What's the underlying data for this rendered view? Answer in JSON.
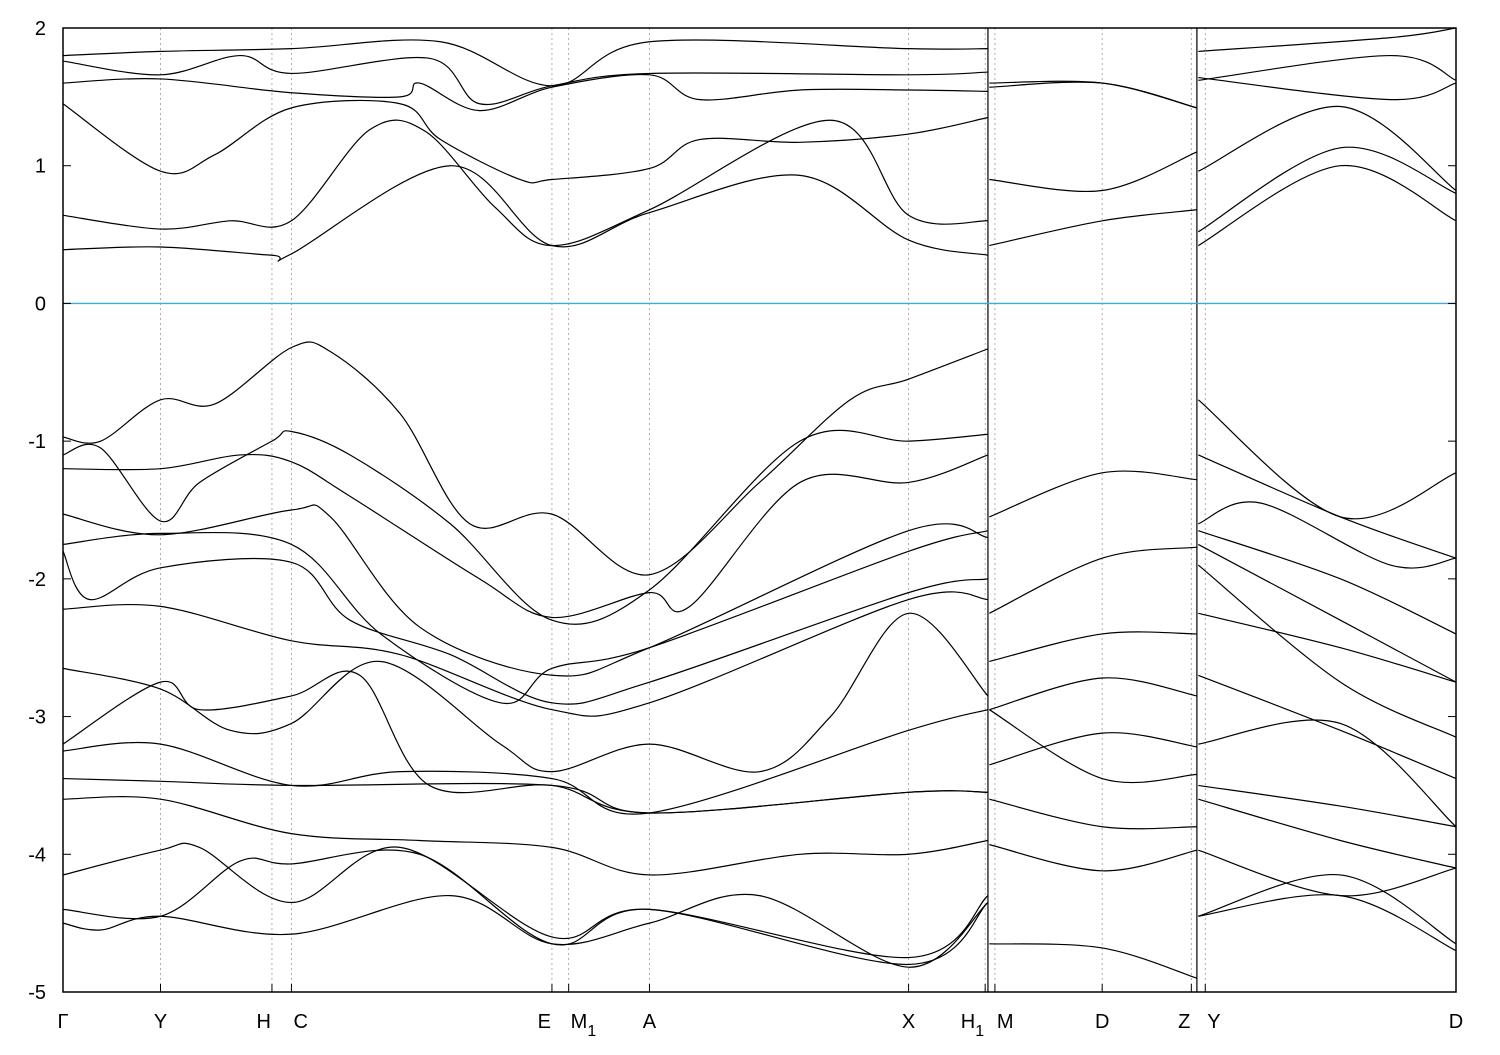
{
  "chart_data": {
    "type": "line",
    "title": "",
    "xlabel": "",
    "ylabel": "",
    "ylim": [
      -5,
      2
    ],
    "xlim": [
      0,
      100
    ],
    "yticks": [
      2,
      1,
      0,
      -1,
      -2,
      -3,
      -4,
      -5
    ],
    "grid": "vertical dotted lines at high-symmetry points",
    "legend": "none",
    "fermi_level": 0,
    "colors": {
      "bands": "#000000",
      "fermi": "#3fa9dc",
      "grid": "#999999"
    },
    "kpoints": [
      {
        "label": "Γ",
        "k": 0
      },
      {
        "label": "Y",
        "k": 7.0
      },
      {
        "label": "H",
        "k": 15.0
      },
      {
        "label": "C",
        "k": 16.4
      },
      {
        "label": "E",
        "k": 35.1
      },
      {
        "label": "M",
        "sub": "1",
        "k": 36.3
      },
      {
        "label": "A",
        "k": 42.1
      },
      {
        "label": "X",
        "k": 60.7
      },
      {
        "label": "H",
        "sub": "1",
        "k": 66.2
      },
      {
        "label": "M",
        "k": 66.9
      },
      {
        "label": "D",
        "k": 74.6
      },
      {
        "label": "Z",
        "k": 81.0
      },
      {
        "label": "Y",
        "k": 82.0
      },
      {
        "label": "D",
        "k": 100
      }
    ],
    "panel_breaks": [
      66.4,
      81.4
    ],
    "bands": [
      [
        [
          0,
          0.39
        ],
        [
          7.0,
          0.41
        ],
        [
          15.0,
          0.35
        ],
        [
          16.4,
          0.36
        ],
        [
          27.8,
          1.0
        ],
        [
          35.1,
          0.42
        ],
        [
          42.1,
          0.66
        ],
        [
          52.9,
          0.93
        ],
        [
          60.7,
          0.46
        ],
        [
          66.4,
          0.35
        ]
      ],
      [
        [
          0,
          0.64
        ],
        [
          7.0,
          0.54
        ],
        [
          12.0,
          0.6
        ],
        [
          16.4,
          0.6
        ],
        [
          22.0,
          1.26
        ],
        [
          26.0,
          1.25
        ],
        [
          31.0,
          0.7
        ],
        [
          35.1,
          0.42
        ],
        [
          42.1,
          0.68
        ],
        [
          55.1,
          1.33
        ],
        [
          60.7,
          0.64
        ],
        [
          66.4,
          0.6
        ]
      ],
      [
        [
          0,
          1.45
        ],
        [
          7.0,
          0.96
        ],
        [
          10.9,
          1.08
        ],
        [
          16.4,
          1.42
        ],
        [
          24.2,
          1.45
        ],
        [
          27.1,
          1.19
        ],
        [
          32.8,
          0.9
        ],
        [
          35.1,
          0.9
        ],
        [
          42.1,
          0.98
        ],
        [
          45.7,
          1.19
        ],
        [
          52.9,
          1.17
        ],
        [
          60.7,
          1.23
        ],
        [
          66.4,
          1.35
        ]
      ],
      [
        [
          0,
          1.6
        ],
        [
          7.0,
          1.63
        ],
        [
          16.4,
          1.53
        ],
        [
          24.2,
          1.5
        ],
        [
          25.6,
          1.6
        ],
        [
          29.9,
          1.4
        ],
        [
          35.1,
          1.57
        ],
        [
          42.1,
          1.66
        ],
        [
          45.7,
          1.48
        ],
        [
          52.9,
          1.55
        ],
        [
          60.7,
          1.55
        ],
        [
          66.4,
          1.54
        ]
      ],
      [
        [
          0,
          1.76
        ],
        [
          7.0,
          1.66
        ],
        [
          12.7,
          1.8
        ],
        [
          16.4,
          1.67
        ],
        [
          26.3,
          1.78
        ],
        [
          29.9,
          1.45
        ],
        [
          35.1,
          1.58
        ],
        [
          42.1,
          1.67
        ],
        [
          60.7,
          1.66
        ],
        [
          66.4,
          1.68
        ]
      ],
      [
        [
          0,
          1.8
        ],
        [
          7.0,
          1.83
        ],
        [
          16.4,
          1.85
        ],
        [
          27.1,
          1.9
        ],
        [
          35.1,
          1.58
        ],
        [
          42.1,
          1.9
        ],
        [
          60.7,
          1.85
        ],
        [
          66.4,
          1.85
        ]
      ],
      [
        [
          0,
          -0.97
        ],
        [
          2.7,
          -1.0
        ],
        [
          7.0,
          -0.7
        ],
        [
          10.9,
          -0.73
        ],
        [
          16.4,
          -0.32
        ],
        [
          19.2,
          -0.35
        ],
        [
          24.2,
          -0.8
        ],
        [
          29.2,
          -1.6
        ],
        [
          35.1,
          -1.53
        ],
        [
          42.1,
          -1.97
        ],
        [
          50.0,
          -1.3
        ],
        [
          56.5,
          -0.7
        ],
        [
          60.7,
          -0.55
        ],
        [
          66.4,
          -0.33
        ]
      ],
      [
        [
          0,
          -1.1
        ],
        [
          2.7,
          -1.05
        ],
        [
          7.0,
          -1.58
        ],
        [
          9.8,
          -1.3
        ],
        [
          15.0,
          -1.0
        ],
        [
          16.4,
          -0.93
        ],
        [
          20.6,
          -1.1
        ],
        [
          27.8,
          -1.6
        ],
        [
          35.1,
          -2.3
        ],
        [
          42.1,
          -2.08
        ],
        [
          52.9,
          -1.0
        ],
        [
          60.7,
          -1.0
        ],
        [
          66.4,
          -0.95
        ]
      ],
      [
        [
          0,
          -1.2
        ],
        [
          7.0,
          -1.2
        ],
        [
          12.7,
          -1.1
        ],
        [
          16.4,
          -1.15
        ],
        [
          20.6,
          -1.4
        ],
        [
          29.9,
          -2.0
        ],
        [
          35.1,
          -2.28
        ],
        [
          42.1,
          -2.1
        ],
        [
          45.0,
          -2.2
        ],
        [
          52.9,
          -1.3
        ],
        [
          60.7,
          -1.3
        ],
        [
          66.4,
          -1.1
        ]
      ],
      [
        [
          0,
          -1.53
        ],
        [
          7.0,
          -1.68
        ],
        [
          16.4,
          -1.5
        ],
        [
          19.2,
          -1.55
        ],
        [
          25.6,
          -2.35
        ],
        [
          35.1,
          -2.7
        ],
        [
          42.1,
          -2.5
        ],
        [
          60.7,
          -1.65
        ],
        [
          66.4,
          -1.7
        ]
      ],
      [
        [
          0,
          -1.75
        ],
        [
          7.0,
          -1.67
        ],
        [
          16.4,
          -1.75
        ],
        [
          22.8,
          -2.4
        ],
        [
          31.4,
          -2.9
        ],
        [
          35.1,
          -2.65
        ],
        [
          42.1,
          -2.5
        ],
        [
          60.7,
          -1.8
        ],
        [
          66.4,
          -1.65
        ]
      ],
      [
        [
          0,
          -1.8
        ],
        [
          1.9,
          -2.15
        ],
        [
          7.0,
          -1.92
        ],
        [
          16.4,
          -1.88
        ],
        [
          20.6,
          -2.3
        ],
        [
          27.8,
          -2.55
        ],
        [
          35.1,
          -2.9
        ],
        [
          42.1,
          -2.75
        ],
        [
          60.7,
          -2.1
        ],
        [
          66.4,
          -2.0
        ]
      ],
      [
        [
          0,
          -2.22
        ],
        [
          7.0,
          -2.2
        ],
        [
          16.4,
          -2.45
        ],
        [
          24.2,
          -2.55
        ],
        [
          35.1,
          -2.95
        ],
        [
          42.1,
          -2.9
        ],
        [
          60.7,
          -2.15
        ],
        [
          66.4,
          -2.15
        ]
      ],
      [
        [
          0,
          -2.65
        ],
        [
          7.0,
          -2.8
        ],
        [
          12.0,
          -3.1
        ],
        [
          16.4,
          -3.05
        ],
        [
          22.8,
          -2.6
        ],
        [
          31.4,
          -3.2
        ],
        [
          35.1,
          -3.4
        ],
        [
          42.1,
          -3.2
        ],
        [
          50.0,
          -3.4
        ],
        [
          55.1,
          -3.0
        ],
        [
          60.7,
          -2.25
        ],
        [
          66.4,
          -2.85
        ]
      ],
      [
        [
          0,
          -3.2
        ],
        [
          7.0,
          -2.75
        ],
        [
          9.8,
          -2.95
        ],
        [
          16.4,
          -2.85
        ],
        [
          21.3,
          -2.7
        ],
        [
          26.3,
          -3.5
        ],
        [
          35.1,
          -3.5
        ],
        [
          42.1,
          -3.7
        ],
        [
          60.7,
          -3.55
        ],
        [
          66.4,
          -3.55
        ]
      ],
      [
        [
          0,
          -3.25
        ],
        [
          7.0,
          -3.2
        ],
        [
          16.4,
          -3.5
        ],
        [
          24.2,
          -3.4
        ],
        [
          35.1,
          -3.45
        ],
        [
          42.1,
          -3.7
        ],
        [
          60.7,
          -3.1
        ],
        [
          66.4,
          -2.95
        ]
      ],
      [
        [
          0,
          -3.45
        ],
        [
          7.0,
          -3.47
        ],
        [
          16.4,
          -3.5
        ],
        [
          35.1,
          -3.5
        ],
        [
          42.1,
          -3.7
        ],
        [
          60.7,
          -3.55
        ],
        [
          66.4,
          -3.55
        ]
      ],
      [
        [
          0,
          -3.6
        ],
        [
          7.0,
          -3.6
        ],
        [
          16.4,
          -3.85
        ],
        [
          25.6,
          -3.9
        ],
        [
          35.1,
          -3.95
        ],
        [
          42.1,
          -4.15
        ],
        [
          52.9,
          -4.0
        ],
        [
          60.7,
          -4.0
        ],
        [
          66.4,
          -3.9
        ]
      ],
      [
        [
          0,
          -4.15
        ],
        [
          7.0,
          -3.97
        ],
        [
          9.8,
          -3.95
        ],
        [
          16.4,
          -4.35
        ],
        [
          24.2,
          -3.95
        ],
        [
          35.1,
          -4.6
        ],
        [
          42.1,
          -4.4
        ],
        [
          60.7,
          -4.75
        ],
        [
          66.4,
          -4.3
        ]
      ],
      [
        [
          0,
          -4.4
        ],
        [
          7.0,
          -4.45
        ],
        [
          12.7,
          -4.05
        ],
        [
          16.4,
          -4.07
        ],
        [
          25.6,
          -4.0
        ],
        [
          35.1,
          -4.65
        ],
        [
          42.1,
          -4.4
        ],
        [
          60.7,
          -4.8
        ],
        [
          66.4,
          -4.35
        ]
      ],
      [
        [
          0,
          -4.5
        ],
        [
          2.7,
          -4.55
        ],
        [
          7.0,
          -4.45
        ],
        [
          16.4,
          -4.58
        ],
        [
          27.8,
          -4.3
        ],
        [
          35.1,
          -4.65
        ],
        [
          42.1,
          -4.5
        ],
        [
          50.0,
          -4.3
        ],
        [
          60.7,
          -4.82
        ],
        [
          66.4,
          -4.35
        ]
      ],
      [
        [
          66.5,
          0.42
        ],
        [
          74.6,
          0.6
        ],
        [
          81.4,
          0.68
        ]
      ],
      [
        [
          66.5,
          0.9
        ],
        [
          74.6,
          0.82
        ],
        [
          81.4,
          1.1
        ]
      ],
      [
        [
          66.5,
          1.6
        ],
        [
          74.6,
          1.6
        ],
        [
          81.4,
          1.42
        ]
      ],
      [
        [
          66.5,
          1.57
        ],
        [
          74.6,
          1.6
        ],
        [
          81.4,
          1.42
        ]
      ],
      [
        [
          66.5,
          -1.55
        ],
        [
          74.6,
          -1.23
        ],
        [
          81.4,
          -1.28
        ]
      ],
      [
        [
          66.5,
          -2.25
        ],
        [
          74.6,
          -1.85
        ],
        [
          81.4,
          -1.77
        ]
      ],
      [
        [
          66.5,
          -2.6
        ],
        [
          74.6,
          -2.4
        ],
        [
          81.4,
          -2.4
        ]
      ],
      [
        [
          66.5,
          -2.95
        ],
        [
          74.6,
          -2.72
        ],
        [
          81.4,
          -2.85
        ]
      ],
      [
        [
          66.5,
          -3.35
        ],
        [
          74.6,
          -3.12
        ],
        [
          81.4,
          -3.22
        ]
      ],
      [
        [
          66.5,
          -2.95
        ],
        [
          74.6,
          -3.45
        ],
        [
          81.4,
          -3.42
        ]
      ],
      [
        [
          66.5,
          -3.6
        ],
        [
          74.6,
          -3.8
        ],
        [
          81.4,
          -3.8
        ]
      ],
      [
        [
          66.5,
          -3.93
        ],
        [
          74.6,
          -4.12
        ],
        [
          81.4,
          -3.97
        ]
      ],
      [
        [
          66.5,
          -4.65
        ],
        [
          74.6,
          -4.68
        ],
        [
          81.4,
          -4.9
        ]
      ],
      [
        [
          81.5,
          0.42
        ],
        [
          91.7,
          1.0
        ],
        [
          100,
          0.6
        ]
      ],
      [
        [
          81.5,
          0.52
        ],
        [
          91.7,
          1.13
        ],
        [
          100,
          0.8
        ]
      ],
      [
        [
          81.5,
          0.96
        ],
        [
          91.7,
          1.43
        ],
        [
          100,
          0.82
        ]
      ],
      [
        [
          81.5,
          1.64
        ],
        [
          95.3,
          1.48
        ],
        [
          100,
          1.6
        ]
      ],
      [
        [
          81.5,
          1.62
        ],
        [
          95.3,
          1.8
        ],
        [
          100,
          1.62
        ]
      ],
      [
        [
          81.5,
          1.83
        ],
        [
          95.3,
          1.93
        ],
        [
          100,
          2.0
        ]
      ],
      [
        [
          81.5,
          -0.7
        ],
        [
          91.7,
          -1.55
        ],
        [
          100,
          -1.23
        ]
      ],
      [
        [
          81.5,
          -1.1
        ],
        [
          91.7,
          -1.55
        ],
        [
          100,
          -1.85
        ]
      ],
      [
        [
          81.5,
          -1.6
        ],
        [
          86.0,
          -1.45
        ],
        [
          95.3,
          -1.9
        ],
        [
          100,
          -1.85
        ]
      ],
      [
        [
          81.5,
          -1.65
        ],
        [
          91.7,
          -2.0
        ],
        [
          100,
          -2.4
        ]
      ],
      [
        [
          81.5,
          -1.75
        ],
        [
          91.7,
          -2.3
        ],
        [
          100,
          -2.75
        ]
      ],
      [
        [
          81.5,
          -1.9
        ],
        [
          91.7,
          -2.75
        ],
        [
          100,
          -3.15
        ]
      ],
      [
        [
          81.5,
          -2.25
        ],
        [
          91.7,
          -2.5
        ],
        [
          100,
          -2.75
        ]
      ],
      [
        [
          81.5,
          -2.7
        ],
        [
          91.7,
          -3.1
        ],
        [
          100,
          -3.45
        ]
      ],
      [
        [
          81.5,
          -3.2
        ],
        [
          91.7,
          -3.05
        ],
        [
          100,
          -3.8
        ]
      ],
      [
        [
          81.5,
          -3.5
        ],
        [
          91.7,
          -3.65
        ],
        [
          100,
          -3.8
        ]
      ],
      [
        [
          81.5,
          -3.6
        ],
        [
          91.7,
          -3.9
        ],
        [
          100,
          -4.1
        ]
      ],
      [
        [
          81.5,
          -3.97
        ],
        [
          91.7,
          -4.3
        ],
        [
          100,
          -4.1
        ]
      ],
      [
        [
          81.5,
          -4.45
        ],
        [
          91.7,
          -4.3
        ],
        [
          100,
          -4.7
        ]
      ],
      [
        [
          81.5,
          -4.45
        ],
        [
          91.7,
          -4.15
        ],
        [
          100,
          -4.65
        ]
      ]
    ]
  }
}
